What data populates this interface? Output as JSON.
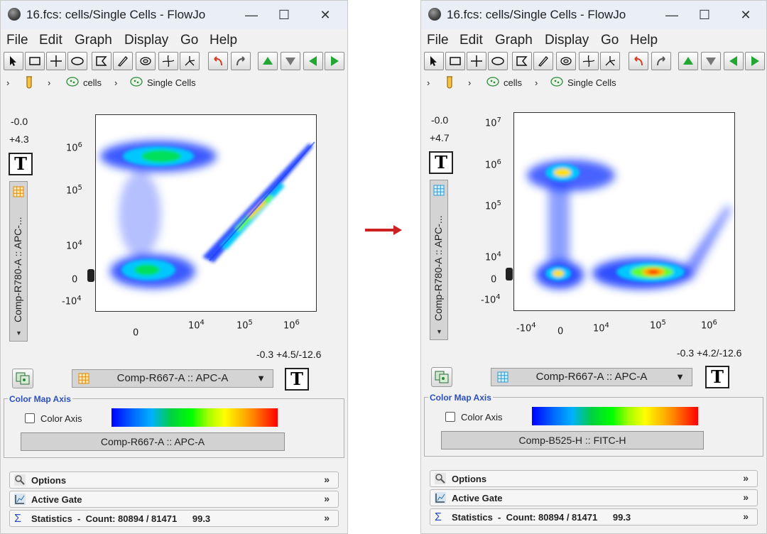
{
  "colors": {
    "accent_green": "#22a832",
    "undo_red": "#d04020",
    "group_title_blue": "#2a4fc0",
    "transition_arrow": "#cc2222"
  },
  "icons": [
    "app-icon",
    "minimize-icon",
    "maximize-icon",
    "close-icon",
    "pointer-icon",
    "rectangle-gate-icon",
    "quadrant-gate-icon",
    "ellipse-gate-icon",
    "polygon-gate-icon",
    "freehand-gate-icon",
    "spider-gate-icon",
    "undo-icon",
    "redo-icon",
    "up-arrow-icon",
    "down-arrow-icon",
    "left-arrow-icon",
    "right-arrow-icon",
    "tube-icon",
    "gate-population-icon",
    "chevron-right-icon",
    "grid-icon",
    "magnifier-icon",
    "chart-icon",
    "sigma-icon",
    "double-chevron-down-icon"
  ],
  "windows": [
    {
      "title": "16.fcs: cells/Single Cells - FlowJo",
      "menu": [
        "File",
        "Edit",
        "Graph",
        "Display",
        "Go",
        "Help"
      ],
      "breadcrumb": [
        "cells",
        "Single Cells"
      ],
      "y_min_label": "-0.0",
      "y_max_label": "+4.3",
      "t_label": "T",
      "y_axis_param": "Comp-R780-A :: APC-...",
      "y_ticks": [
        {
          "base": "10",
          "exp": "6"
        },
        {
          "base": "10",
          "exp": "5"
        },
        {
          "base": "10",
          "exp": "4"
        },
        {
          "base": "0",
          "exp": ""
        },
        {
          "base": "-10",
          "exp": "4"
        }
      ],
      "x_ticks": [
        {
          "base": "0",
          "exp": ""
        },
        {
          "base": "10",
          "exp": "4"
        },
        {
          "base": "10",
          "exp": "5"
        },
        {
          "base": "10",
          "exp": "6"
        }
      ],
      "x_range_label": "-0.3 +4.5/-12.6",
      "x_axis_param": "Comp-R667-A :: APC-A",
      "color_map_title": "Color Map Axis",
      "color_axis_label": "Color Axis",
      "color_map_param": "Comp-R667-A :: APC-A",
      "panels": {
        "options": "Options",
        "active_gate": "Active Gate",
        "statistics": "Statistics  -  Count: 80894 / 81471      99.3"
      }
    },
    {
      "title": "16.fcs: cells/Single Cells - FlowJo",
      "menu": [
        "File",
        "Edit",
        "Graph",
        "Display",
        "Go",
        "Help"
      ],
      "breadcrumb": [
        "cells",
        "Single Cells"
      ],
      "y_min_label": "-0.0",
      "y_max_label": "+4.7",
      "t_label": "T",
      "y_axis_param": "Comp-R780-A :: APC-...",
      "y_ticks": [
        {
          "base": "10",
          "exp": "7"
        },
        {
          "base": "10",
          "exp": "6"
        },
        {
          "base": "10",
          "exp": "5"
        },
        {
          "base": "10",
          "exp": "4"
        },
        {
          "base": "0",
          "exp": ""
        },
        {
          "base": "-10",
          "exp": "4"
        }
      ],
      "x_ticks": [
        {
          "base": "-10",
          "exp": "4"
        },
        {
          "base": "0",
          "exp": ""
        },
        {
          "base": "10",
          "exp": "4"
        },
        {
          "base": "10",
          "exp": "5"
        },
        {
          "base": "10",
          "exp": "6"
        }
      ],
      "x_range_label": "-0.3 +4.2/-12.6",
      "x_axis_param": "Comp-R667-A :: APC-A",
      "color_map_title": "Color Map Axis",
      "color_axis_label": "Color Axis",
      "color_map_param": "Comp-B525-H :: FITC-H",
      "panels": {
        "options": "Options",
        "active_gate": "Active Gate",
        "statistics": "Statistics  -  Count: 80894 / 81471      99.3"
      }
    }
  ]
}
